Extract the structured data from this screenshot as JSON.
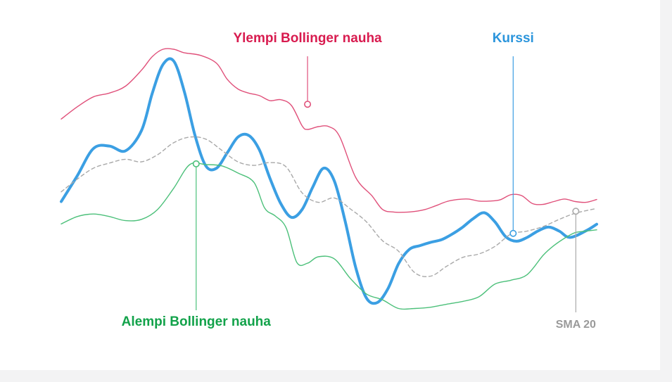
{
  "colors": {
    "upper": "#e0507a",
    "upper_label": "#d81b4f",
    "price": "#3b9fe3",
    "price_label": "#2b95dc",
    "sma": "#a9a9a9",
    "sma_label": "#9a9a9a",
    "lower": "#4cc07a",
    "lower_label": "#12a24a",
    "background": "#ffffff",
    "page": "#f3f3f4"
  },
  "chart_data": {
    "type": "line",
    "xlim": [
      0,
      100
    ],
    "ylim": [
      0,
      100
    ],
    "grid": false,
    "axes": false,
    "series": [
      {
        "name": "Ylempi Bollinger nauha",
        "key": "upper",
        "x": [
          0,
          3,
          6,
          9,
          12,
          15,
          17,
          19,
          21,
          23,
          26,
          29,
          31,
          33,
          35,
          37,
          39,
          41,
          43,
          45,
          46,
          48,
          50,
          52,
          55,
          58,
          60,
          62,
          64,
          66,
          68,
          70,
          72,
          74,
          76,
          78,
          80,
          82,
          84,
          86,
          88,
          90,
          92,
          94,
          96,
          98,
          100
        ],
        "y": [
          72.6,
          77.4,
          81.3,
          82.8,
          85.5,
          91.8,
          97.1,
          100,
          100,
          98.6,
          97.6,
          94.5,
          88.2,
          84.4,
          82.8,
          81.8,
          79.8,
          80.2,
          77.9,
          69.9,
          68.5,
          69.6,
          69.6,
          65.7,
          49.6,
          42.5,
          37.1,
          36.1,
          36.0,
          36.3,
          37.1,
          38.6,
          40.2,
          41.0,
          41.2,
          40.4,
          40.4,
          40.9,
          42.9,
          42.5,
          39.4,
          39.1,
          40.2,
          41.2,
          40.2,
          39.9,
          41.0
        ]
      },
      {
        "name": "Kurssi",
        "key": "price",
        "x": [
          0,
          3,
          6,
          9,
          12,
          15,
          17,
          19,
          21,
          23,
          25,
          27,
          29,
          31,
          33,
          35,
          37,
          39,
          41,
          43,
          45,
          47,
          49,
          51,
          53,
          55,
          57,
          59,
          61,
          63,
          65,
          67,
          69,
          71,
          73,
          75,
          77,
          79,
          81,
          83,
          85,
          87,
          89,
          91,
          93,
          95,
          98,
          100
        ],
        "y": [
          40.2,
          50.3,
          61.0,
          62.0,
          60.1,
          68.1,
          82.7,
          94.0,
          95.4,
          83.3,
          66.0,
          54.2,
          53.3,
          59.3,
          65.5,
          66.2,
          60.5,
          49.2,
          39.4,
          34.0,
          37.1,
          46.0,
          53.3,
          48.3,
          32.7,
          14.2,
          2.3,
          0.5,
          5.9,
          15.8,
          21.4,
          22.9,
          24.2,
          25.2,
          27.4,
          30.2,
          33.6,
          35.8,
          32.2,
          26.4,
          24.6,
          26.1,
          28.6,
          30.2,
          28.6,
          26.1,
          28.7,
          31.3
        ]
      },
      {
        "name": "SMA 20",
        "key": "sma",
        "x": [
          0,
          3,
          6,
          9,
          12,
          15,
          18,
          21,
          24,
          27,
          30,
          33,
          36,
          39,
          42,
          45,
          48,
          51,
          54,
          57,
          60,
          63,
          66,
          69,
          72,
          75,
          78,
          81,
          84,
          87,
          90,
          93,
          96,
          100
        ],
        "y": [
          44.0,
          49.0,
          53.3,
          55.3,
          56.8,
          55.8,
          58.6,
          63.3,
          65.5,
          64.7,
          60.3,
          55.8,
          54.4,
          55.5,
          53.8,
          43.6,
          39.9,
          41.6,
          37.3,
          32.2,
          24.8,
          20.7,
          12.3,
          10.9,
          14.8,
          18.3,
          19.6,
          22.6,
          27.4,
          28.6,
          30.4,
          33.2,
          35.6,
          37.5
        ]
      },
      {
        "name": "Alempi Bollinger nauha",
        "key": "lower",
        "x": [
          0,
          3,
          6,
          9,
          12,
          15,
          18,
          21,
          24,
          27,
          30,
          33,
          36,
          38,
          40,
          42,
          44,
          46,
          48,
          51,
          54,
          57,
          60,
          63,
          66,
          69,
          72,
          75,
          78,
          81,
          84,
          87,
          90,
          92,
          94,
          96,
          98,
          100
        ],
        "y": [
          31.4,
          34.3,
          35.3,
          34.3,
          32.7,
          33.2,
          37.1,
          45.4,
          54.7,
          54.7,
          54.2,
          51.4,
          47.7,
          37.6,
          34.5,
          29.9,
          16.3,
          16.0,
          18.5,
          17.7,
          10.0,
          3.9,
          1.6,
          -1.8,
          -1.8,
          -1.3,
          -0.1,
          1.0,
          2.8,
          7.8,
          9.3,
          11.5,
          19.1,
          22.9,
          25.8,
          28.0,
          28.6,
          29.1
        ]
      }
    ],
    "annotations": [
      {
        "text": "Ylempi Bollinger nauha",
        "series": "upper",
        "marker_x": 46.0,
        "marker_y": 78.4,
        "label_anchor": "middle",
        "label_side": "top"
      },
      {
        "text": "Kurssi",
        "series": "price",
        "marker_x": 84.4,
        "marker_y": 27.7,
        "label_anchor": "middle",
        "label_side": "top"
      },
      {
        "text": "Alempi Bollinger nauha",
        "series": "lower",
        "marker_x": 25.2,
        "marker_y": 55.0,
        "label_anchor": "middle",
        "label_side": "bottom"
      },
      {
        "text": "SMA 20",
        "series": "sma",
        "marker_x": 96.1,
        "marker_y": 36.4,
        "label_anchor": "middle",
        "label_side": "bottom"
      }
    ]
  }
}
